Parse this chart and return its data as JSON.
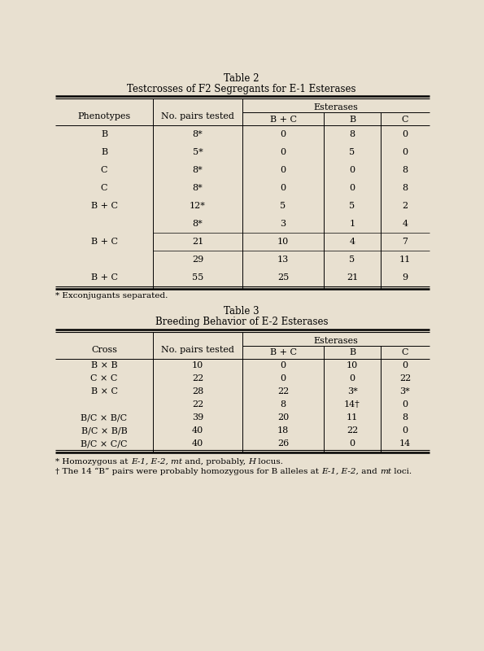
{
  "bg_color": "#e8e0d0",
  "table2_title": "Table 2",
  "table2_subtitle": "Testcrosses of F2 Segregants for E-1 Esterases",
  "table2_esterases_header": "Esterases",
  "table2_rows": [
    [
      "B",
      "8*",
      "0",
      "8",
      "0"
    ],
    [
      "B",
      "5*",
      "0",
      "5",
      "0"
    ],
    [
      "C",
      "8*",
      "0",
      "0",
      "8"
    ],
    [
      "C",
      "8*",
      "0",
      "0",
      "8"
    ],
    [
      "B + C",
      "12*",
      "5",
      "5",
      "2"
    ],
    [
      "B + C",
      "8*|21|29",
      "3|10|13",
      "1|4|5",
      "4|7|11"
    ],
    [
      "B + C",
      "55",
      "25",
      "21",
      "9"
    ]
  ],
  "table2_footnote": "* Exconjugants separated.",
  "table3_title": "Table 3",
  "table3_subtitle": "Breeding Behavior of E-2 Esterases",
  "table3_esterases_header": "Esterases",
  "table3_rows": [
    [
      "B × B",
      "10",
      "0",
      "10",
      "0"
    ],
    [
      "C × C",
      "22",
      "0",
      "0",
      "22"
    ],
    [
      "B × C",
      "28",
      "22",
      "3*",
      "3*"
    ],
    [
      "",
      "22",
      "8",
      "14†",
      "0"
    ],
    [
      "B/C × B/C",
      "39",
      "20",
      "11",
      "8"
    ],
    [
      "B/C × B/B",
      "40",
      "18",
      "22",
      "0"
    ],
    [
      "B/C × C/C",
      "40",
      "26",
      "0",
      "14"
    ]
  ]
}
